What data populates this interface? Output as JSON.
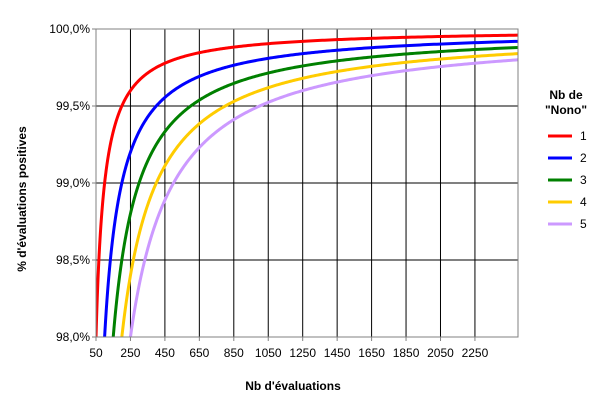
{
  "chart_data": {
    "type": "line",
    "xlabel": "Nb d'évaluations",
    "ylabel": "% d'évaluations positives",
    "xlim": [
      50,
      2500
    ],
    "ylim": [
      0.98,
      1.0
    ],
    "x_ticks": [
      50,
      250,
      450,
      650,
      850,
      1050,
      1250,
      1450,
      1650,
      1850,
      2050,
      2250
    ],
    "x_tick_labels": [
      "50",
      "250",
      "450",
      "650",
      "850",
      "1050",
      "1250",
      "1450",
      "1650",
      "1850",
      "2050",
      "2250"
    ],
    "y_ticks": [
      0.98,
      0.985,
      0.99,
      0.995,
      1.0
    ],
    "y_tick_labels": [
      "98,0%",
      "98,5%",
      "99,0%",
      "99,5%",
      "100,0%"
    ],
    "grid": true,
    "legend": {
      "title_lines": [
        "Nb de",
        "\"Nono\""
      ],
      "placement": "right"
    },
    "formula": "y = 1 - k / x",
    "series": [
      {
        "name": "1",
        "k": 1,
        "color": "#ff0000"
      },
      {
        "name": "2",
        "k": 2,
        "color": "#0000ff"
      },
      {
        "name": "3",
        "k": 3,
        "color": "#008000"
      },
      {
        "name": "4",
        "k": 4,
        "color": "#ffcc00"
      },
      {
        "name": "5",
        "k": 5,
        "color": "#cc99ff"
      }
    ]
  }
}
